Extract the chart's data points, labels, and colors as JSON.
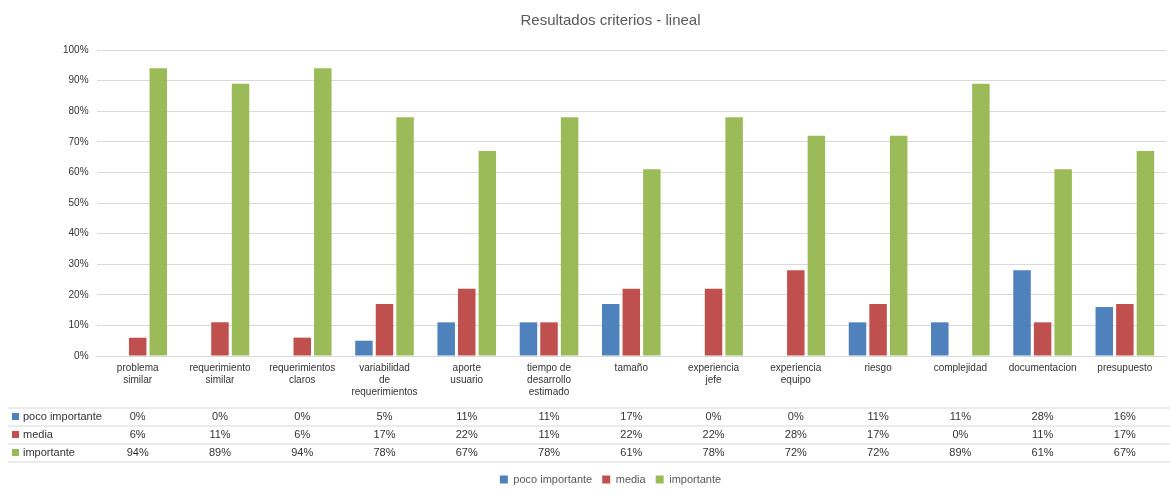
{
  "chart_data": {
    "type": "bar",
    "title": "Resultados criterios - lineal",
    "categories": [
      "problema similar",
      "requerimiento similar",
      "requerimientos claros",
      "variabilidad de requerimientos",
      "aporte usuario",
      "tiempo de desarrollo estimado",
      "tamaño",
      "experiencia jefe",
      "experiencia equipo",
      "riesgo",
      "complejidad",
      "documentacion",
      "presupuesto"
    ],
    "series": [
      {
        "name": "poco importante",
        "color": "#4f81bd",
        "values": [
          0,
          0,
          0,
          5,
          11,
          11,
          17,
          0,
          0,
          11,
          11,
          28,
          16
        ],
        "value_labels": [
          "0%",
          "0%",
          "0%",
          "5%",
          "11%",
          "11%",
          "17%",
          "0%",
          "0%",
          "11%",
          "11%",
          "28%",
          "16%"
        ]
      },
      {
        "name": "media",
        "color": "#c0504d",
        "values": [
          6,
          11,
          6,
          17,
          22,
          11,
          22,
          22,
          28,
          17,
          0,
          11,
          17
        ],
        "value_labels": [
          "6%",
          "11%",
          "6%",
          "17%",
          "22%",
          "11%",
          "22%",
          "22%",
          "28%",
          "17%",
          "0%",
          "11%",
          "17%"
        ]
      },
      {
        "name": "importante",
        "color": "#9bbb59",
        "values": [
          94,
          89,
          94,
          78,
          67,
          78,
          61,
          78,
          72,
          72,
          89,
          61,
          67
        ],
        "value_labels": [
          "94%",
          "89%",
          "94%",
          "78%",
          "67%",
          "78%",
          "61%",
          "78%",
          "72%",
          "72%",
          "89%",
          "61%",
          "67%"
        ]
      }
    ],
    "ylim": [
      0,
      100
    ],
    "yticks": [
      {
        "value": 0,
        "label": "0%"
      },
      {
        "value": 10,
        "label": "10%"
      },
      {
        "value": 20,
        "label": "20%"
      },
      {
        "value": 30,
        "label": "30%"
      },
      {
        "value": 40,
        "label": "40%"
      },
      {
        "value": 50,
        "label": "50%"
      },
      {
        "value": 60,
        "label": "60%"
      },
      {
        "value": 70,
        "label": "70%"
      },
      {
        "value": 80,
        "label": "80%"
      },
      {
        "value": 90,
        "label": "90%"
      },
      {
        "value": 100,
        "label": "100%"
      }
    ],
    "grid": "y",
    "legend": "bottom"
  }
}
